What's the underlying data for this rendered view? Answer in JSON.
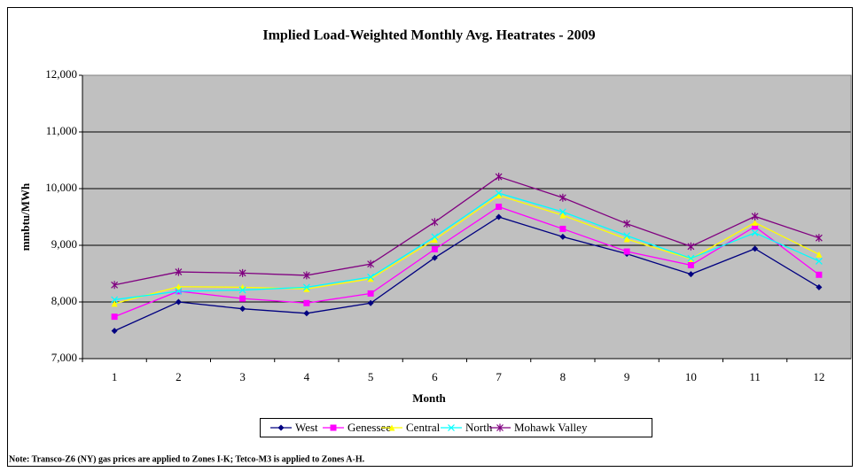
{
  "chart_data": {
    "type": "line",
    "title": "Implied Load-Weighted Monthly Avg.  Heatrates - 2009",
    "x_label": "Month",
    "y_label": "mmbtu/MWh",
    "note": "Note: Transco-Z6 (NY) gas prices are applied to Zones I-K; Tetco-M3 is applied to Zones A-H.",
    "categories": [
      "1",
      "2",
      "3",
      "4",
      "5",
      "6",
      "7",
      "8",
      "9",
      "10",
      "11",
      "12"
    ],
    "ylim": [
      7000,
      12000
    ],
    "yticks": [
      {
        "value": 7000,
        "label": "7,000"
      },
      {
        "value": 8000,
        "label": "8,000"
      },
      {
        "value": 9000,
        "label": "9,000"
      },
      {
        "value": 10000,
        "label": "10,000"
      },
      {
        "value": 11000,
        "label": "11,000"
      },
      {
        "value": 12000,
        "label": "12,000"
      }
    ],
    "grid": true,
    "plot_background": "#c0c0c0",
    "legend": "bottom",
    "series": [
      {
        "name": "West",
        "color": "#000080",
        "marker": "diamond",
        "values": [
          7490,
          8000,
          7880,
          7800,
          7980,
          8780,
          9500,
          9150,
          8850,
          8490,
          8940,
          8260
        ]
      },
      {
        "name": "Genessee",
        "color": "#ff00ff",
        "marker": "square",
        "values": [
          7740,
          8190,
          8060,
          7980,
          8150,
          8930,
          9680,
          9290,
          8890,
          8650,
          9330,
          8480
        ]
      },
      {
        "name": "Central",
        "color": "#ffff00",
        "marker": "triangle",
        "values": [
          7970,
          8270,
          8260,
          8230,
          8410,
          9100,
          9880,
          9530,
          9110,
          8760,
          9400,
          8840
        ]
      },
      {
        "name": "North",
        "color": "#00ffff",
        "marker": "x",
        "values": [
          8040,
          8190,
          8210,
          8260,
          8440,
          9150,
          9920,
          9590,
          9170,
          8770,
          9220,
          8720
        ]
      },
      {
        "name": "Mohawk Valley",
        "color": "#800080",
        "marker": "star",
        "values": [
          8300,
          8530,
          8510,
          8470,
          8670,
          9410,
          10210,
          9840,
          9380,
          8980,
          9510,
          9130
        ]
      }
    ]
  }
}
